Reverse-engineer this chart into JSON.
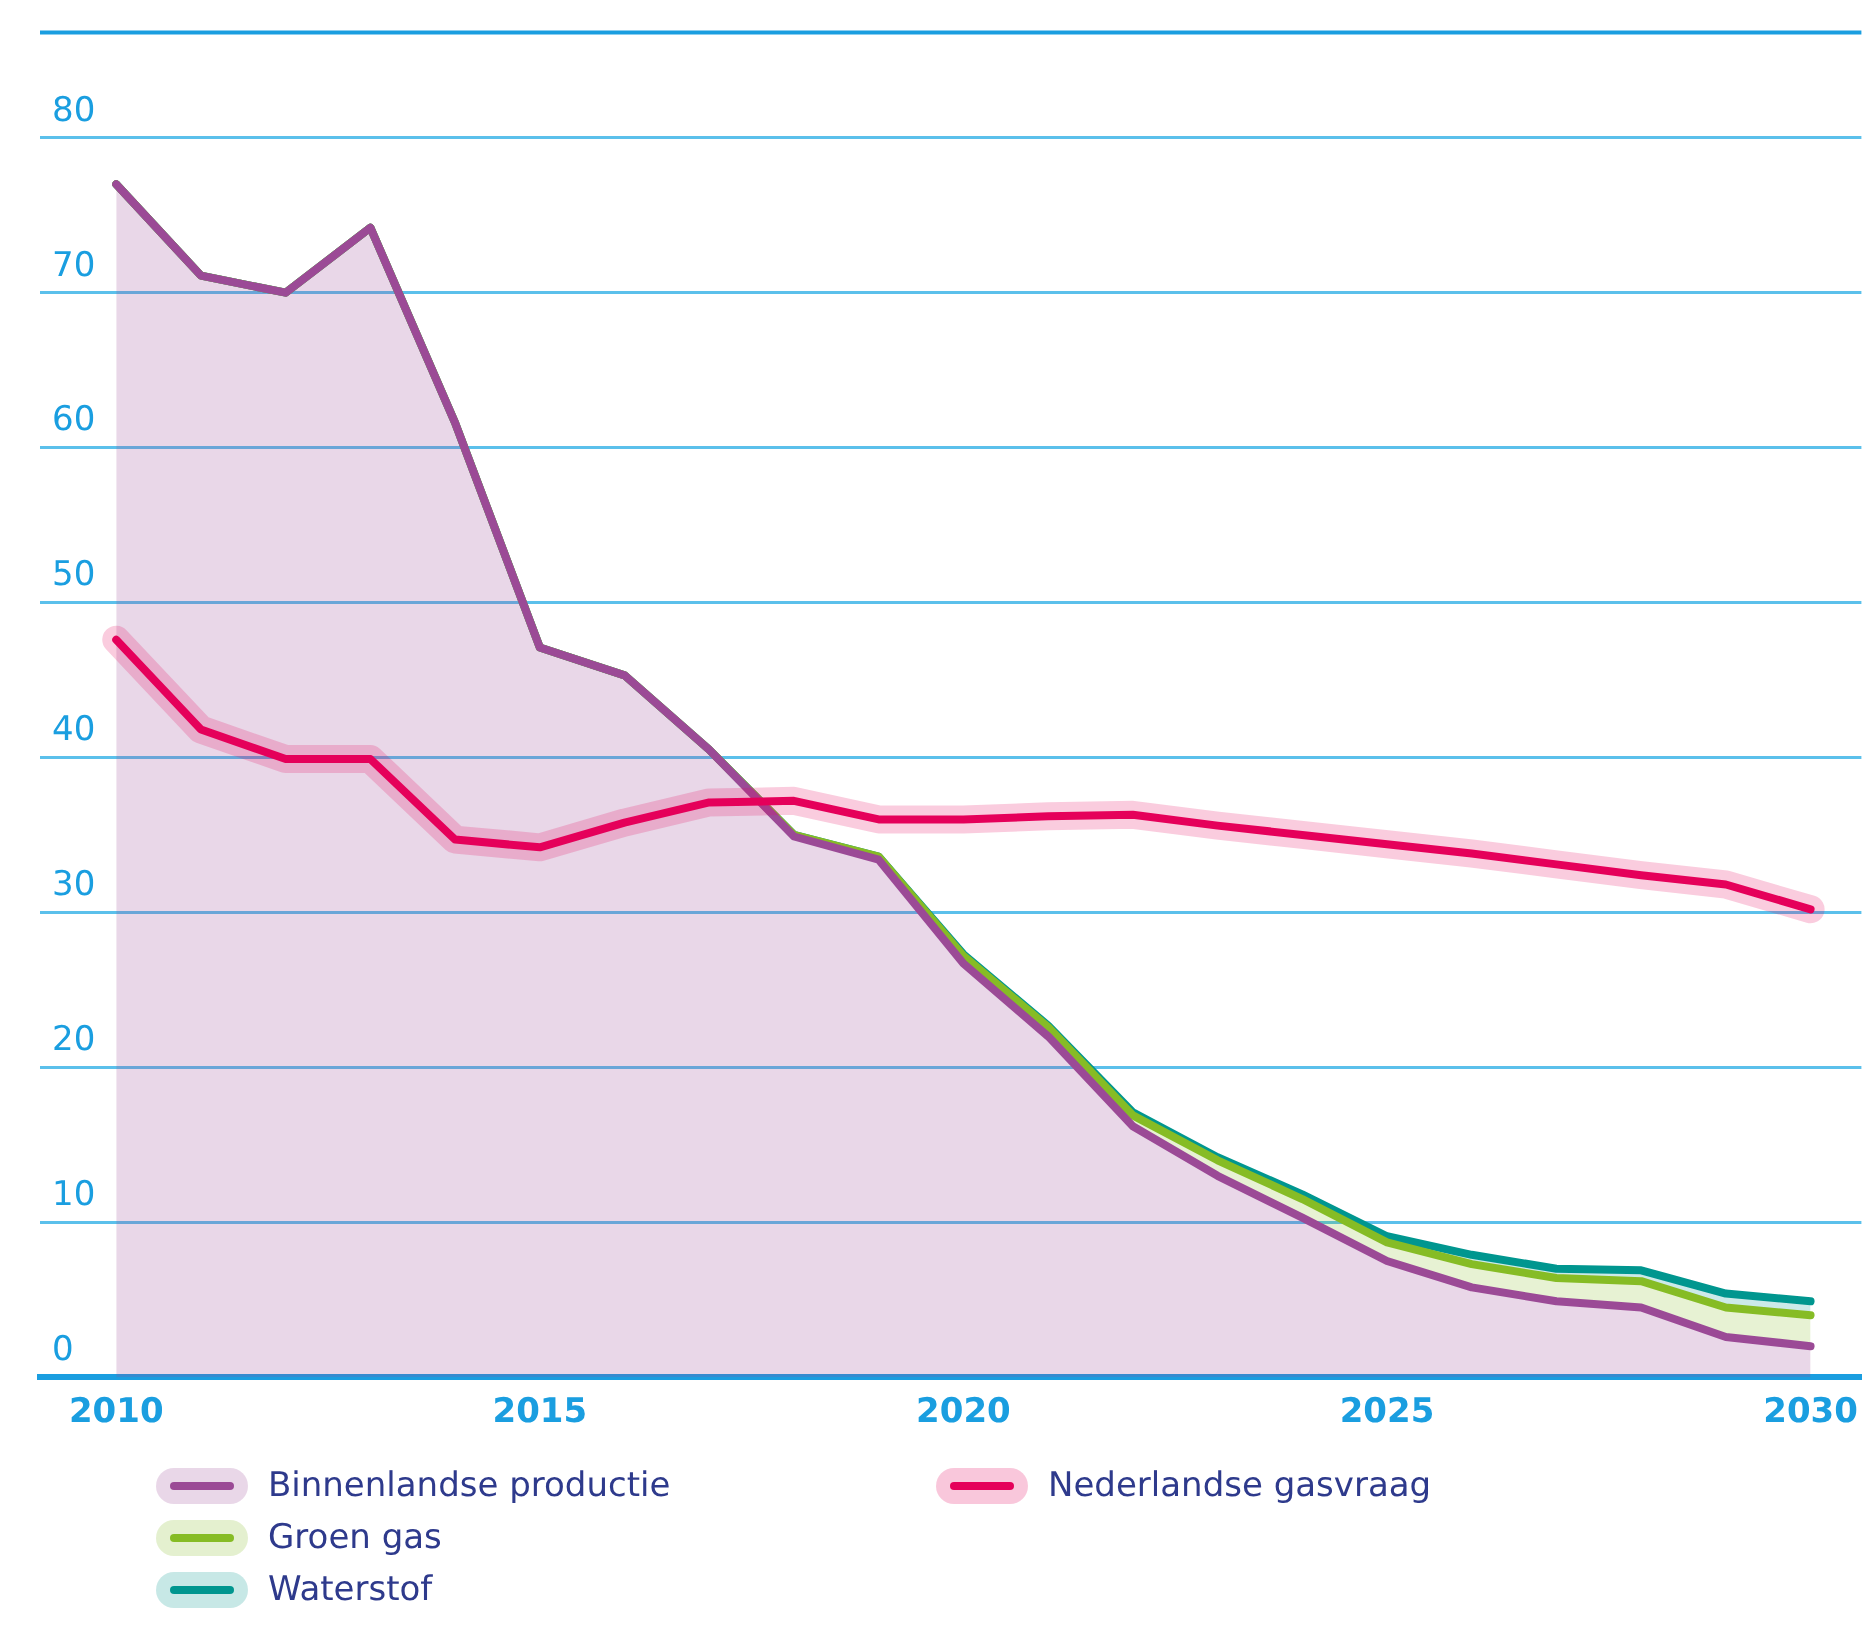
{
  "chart_data": {
    "type": "area",
    "stacked": true,
    "x": [
      2010,
      2011,
      2012,
      2013,
      2014,
      2015,
      2016,
      2017,
      2018,
      2019,
      2020,
      2021,
      2022,
      2023,
      2024,
      2025,
      2026,
      2027,
      2028,
      2029,
      2030
    ],
    "series": [
      {
        "name": "Binnenlandse productie",
        "color": "#9b4a96",
        "values": [
          77.0,
          71.1,
          70.0,
          74.2,
          61.6,
          47.1,
          45.3,
          40.5,
          34.9,
          33.4,
          26.7,
          22.0,
          16.2,
          13.0,
          10.3,
          7.5,
          5.8,
          4.9,
          4.5,
          2.6,
          2.0
        ]
      },
      {
        "name": "Groen gas",
        "color": "#86bc25",
        "values": [
          0,
          0,
          0,
          0,
          0,
          0,
          0,
          0,
          0.1,
          0.2,
          0.5,
          0.6,
          0.7,
          1.0,
          1.2,
          1.2,
          1.5,
          1.5,
          1.7,
          1.9,
          2.0
        ]
      },
      {
        "name": "Waterstof",
        "color": "#00968f",
        "values": [
          0,
          0,
          0,
          0,
          0,
          0,
          0,
          0,
          0,
          0,
          0.1,
          0.1,
          0.2,
          0.2,
          0.3,
          0.4,
          0.6,
          0.6,
          0.7,
          0.9,
          0.9
        ]
      },
      {
        "name": "Nederlandse gasvraag",
        "type": "line",
        "color": "#e5005a",
        "values": [
          47.6,
          41.8,
          39.9,
          39.9,
          34.7,
          34.2,
          35.8,
          37.1,
          37.2,
          36.0,
          36.0,
          36.2,
          36.3,
          35.6,
          35.0,
          34.4,
          33.8,
          33.1,
          32.4,
          31.8,
          30.2
        ]
      }
    ],
    "xlim": [
      2009.1,
      2030.6
    ],
    "xticks": [
      2010,
      2015,
      2020,
      2025,
      2030
    ],
    "ylim": [
      0,
      86.8
    ],
    "yticks": [
      0,
      10,
      20,
      30,
      40,
      50,
      60,
      70,
      80
    ],
    "grid": "y",
    "legend": "bottom"
  }
}
